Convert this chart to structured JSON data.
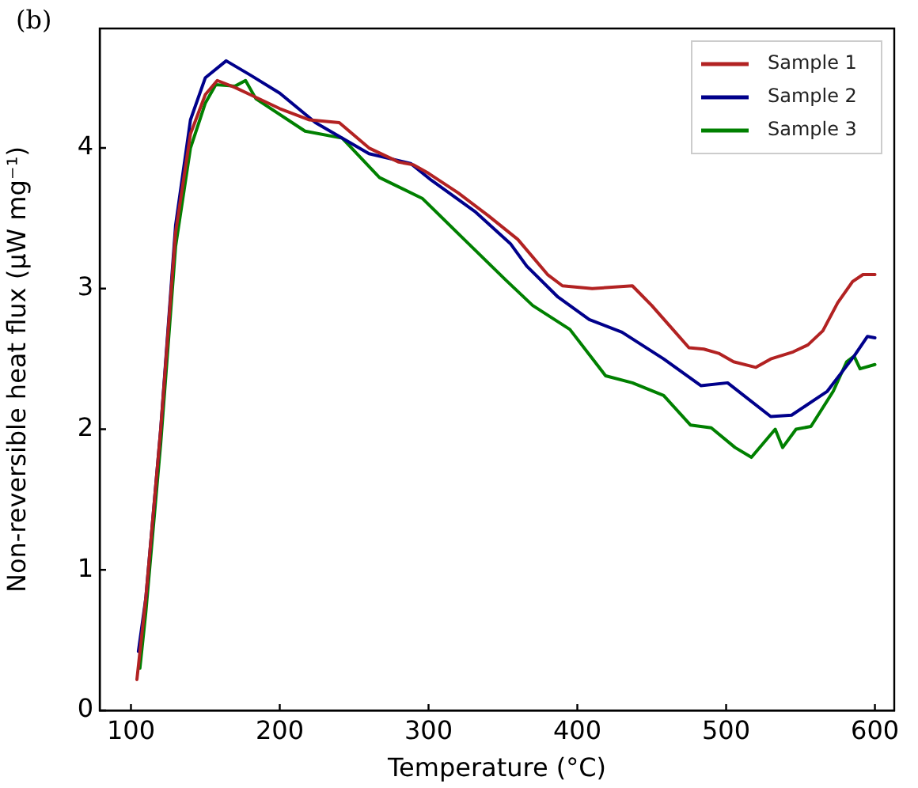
{
  "chart_data": {
    "type": "line",
    "xlabel": "Temperature (°C)",
    "ylabel": "Non-reversible heat flux (μW mg⁻¹)",
    "annotations": [
      "(b)"
    ],
    "xlim": [
      79,
      613
    ],
    "ylim": [
      0,
      4.85
    ],
    "xticks": [
      100,
      200,
      300,
      400,
      500,
      600
    ],
    "yticks": [
      0,
      1,
      2,
      3,
      4
    ],
    "grid": false,
    "legend": "top right",
    "marker": "none",
    "line_style": "solid",
    "series": [
      {
        "name": "Sample 1",
        "color": "#b22222",
        "x": [
          104,
          110,
          120,
          130,
          140,
          150,
          158,
          170,
          180,
          200,
          220,
          240,
          260,
          280,
          290,
          300,
          320,
          340,
          360,
          380,
          390,
          410,
          437,
          450,
          465,
          475,
          485,
          495,
          505,
          520,
          530,
          545,
          555,
          565,
          575,
          585,
          592,
          600
        ],
        "values": [
          0.22,
          0.8,
          2.0,
          3.4,
          4.1,
          4.38,
          4.48,
          4.43,
          4.38,
          4.28,
          4.2,
          4.18,
          4.0,
          3.9,
          3.88,
          3.82,
          3.68,
          3.52,
          3.35,
          3.1,
          3.02,
          3.0,
          3.02,
          2.88,
          2.7,
          2.58,
          2.57,
          2.54,
          2.48,
          2.44,
          2.5,
          2.55,
          2.6,
          2.7,
          2.9,
          3.05,
          3.1,
          3.1
        ]
      },
      {
        "name": "Sample 2",
        "color": "#00008b",
        "x": [
          105,
          110,
          120,
          130,
          140,
          150,
          164,
          180,
          200,
          224,
          260,
          288,
          302,
          331,
          355,
          366,
          387,
          408,
          430,
          458,
          483,
          501,
          530,
          544,
          568,
          586,
          595,
          600
        ],
        "values": [
          0.42,
          0.8,
          2.0,
          3.45,
          4.2,
          4.5,
          4.62,
          4.52,
          4.39,
          4.18,
          3.96,
          3.89,
          3.77,
          3.55,
          3.32,
          3.16,
          2.94,
          2.78,
          2.69,
          2.5,
          2.31,
          2.33,
          2.09,
          2.1,
          2.27,
          2.52,
          2.66,
          2.65
        ]
      },
      {
        "name": "Sample 3",
        "color": "#008000",
        "x": [
          106,
          110,
          120,
          130,
          140,
          150,
          157,
          170,
          177,
          184,
          217,
          242,
          267,
          296,
          323,
          352,
          370,
          395,
          419,
          437,
          458,
          476,
          490,
          506,
          517,
          533,
          538,
          547,
          557,
          572,
          581,
          586,
          590,
          600
        ],
        "values": [
          0.3,
          0.7,
          1.9,
          3.3,
          4.0,
          4.32,
          4.45,
          4.44,
          4.48,
          4.35,
          4.12,
          4.07,
          3.79,
          3.64,
          3.36,
          3.06,
          2.88,
          2.71,
          2.38,
          2.33,
          2.24,
          2.03,
          2.01,
          1.87,
          1.8,
          2.0,
          1.87,
          2.0,
          2.02,
          2.27,
          2.48,
          2.52,
          2.43,
          2.46
        ]
      }
    ]
  }
}
